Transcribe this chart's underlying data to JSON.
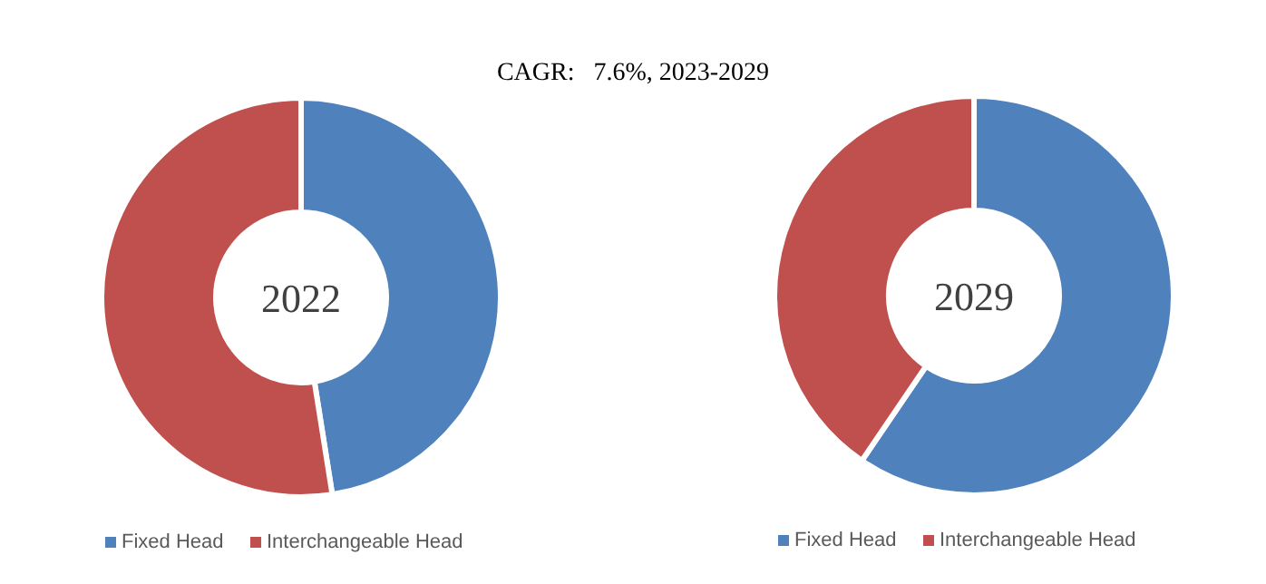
{
  "chart_data": [
    {
      "type": "donut",
      "title": "2022",
      "categories": [
        "Fixed Head",
        "Interchangeable Head"
      ],
      "values": [
        47.5,
        52.5
      ],
      "colors": [
        "#4f81bd",
        "#c0504d"
      ],
      "legend": "bottom",
      "annotations": [
        "CAGR:   7.6%, 2023-2029"
      ]
    },
    {
      "type": "donut",
      "title": "2029",
      "categories": [
        "Fixed Head",
        "Interchangeable Head"
      ],
      "values": [
        59.5,
        40.5
      ],
      "colors": [
        "#4f81bd",
        "#c0504d"
      ],
      "legend": "bottom"
    }
  ]
}
